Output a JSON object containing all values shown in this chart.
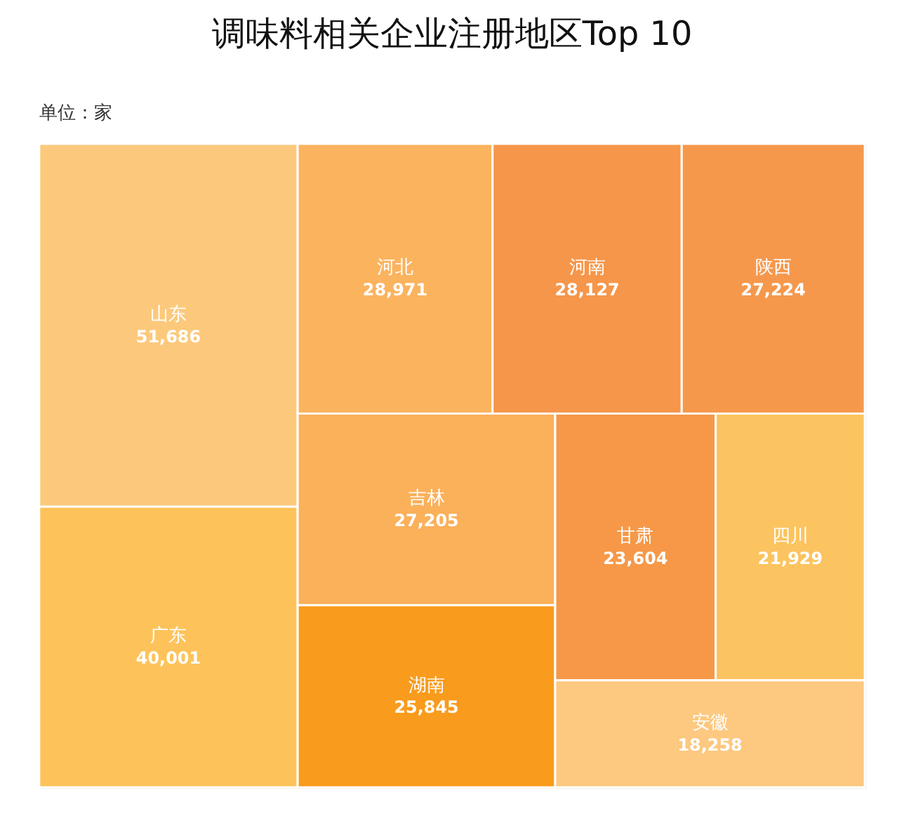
{
  "chart_data": {
    "type": "other",
    "title": "调味料相关企业注册地区Top 10",
    "annotations": [
      "单位：家"
    ],
    "categories": [
      "山东",
      "广东",
      "河北",
      "河南",
      "陕西",
      "吉林",
      "湖南",
      "甘肃",
      "四川",
      "安徽"
    ],
    "values": [
      51686,
      40001,
      28971,
      28127,
      27224,
      27205,
      25845,
      23604,
      21929,
      18258
    ],
    "colors": [
      "#fcc97c",
      "#fdc35a",
      "#fbb35e",
      "#f6964a",
      "#f6984c",
      "#fbb05a",
      "#f99b1c",
      "#f69848",
      "#fcc460",
      "#fdc880"
    ],
    "value_labels": [
      "51,686",
      "40,001",
      "28,971",
      "28,127",
      "27,224",
      "27,205",
      "25,845",
      "23,604",
      "21,929",
      "18,258"
    ]
  }
}
